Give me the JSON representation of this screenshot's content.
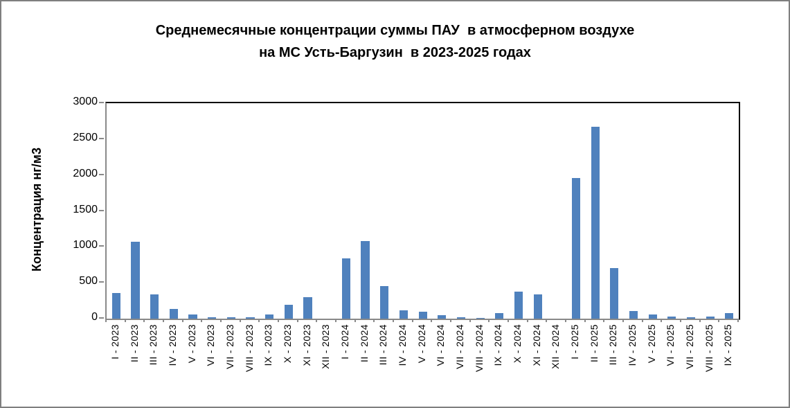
{
  "figure": {
    "title_line1": "Среднемесячные концентрации суммы ПАУ  в атмосферном воздухе",
    "title_line2": "на МС Усть-Баргузин  в 2023-2025 годах"
  },
  "chart_data": {
    "type": "bar",
    "title": "Среднемесячные концентрации суммы ПАУ в атмосферном воздухе на МС Усть-Баргузин в 2023-2025 годах",
    "ylabel": "Концентрация нг/м3",
    "xlabel": "",
    "ylim": [
      0,
      3000
    ],
    "yticks": [
      0,
      500,
      1000,
      1500,
      2000,
      2500,
      3000
    ],
    "grid": false,
    "legend": false,
    "categories": [
      "I - 2023",
      "II - 2023",
      "III - 2023",
      "IV - 2023",
      "V - 2023",
      "VI - 2023",
      "VII - 2023",
      "VIII - 2023",
      "IX - 2023",
      "X - 2023",
      "XI - 2023",
      "XII - 2023",
      "I - 2024",
      "II - 2024",
      "III - 2024",
      "IV - 2024",
      "V - 2024",
      "VI - 2024",
      "VII - 2024",
      "VIII - 2024",
      "IX - 2024",
      "X - 2024",
      "XI - 2024",
      "XII - 2024",
      "I - 2025",
      "II - 2025",
      "III - 2025",
      "IV - 2025",
      "V - 2025",
      "VI - 2025",
      "VII - 2025",
      "VIII - 2025",
      "IX - 2025"
    ],
    "values": [
      360,
      1075,
      340,
      140,
      55,
      20,
      18,
      15,
      60,
      195,
      295,
      0,
      835,
      1085,
      455,
      115,
      100,
      52,
      15,
      14,
      80,
      372,
      338,
      0,
      1960,
      2675,
      700,
      105,
      60,
      30,
      18,
      25,
      80
    ]
  },
  "colors": {
    "bar": "#4F81BD",
    "axis_line": "#898989",
    "plot_border": "#000000",
    "text": "#000000",
    "figure_border": "#7f7f7f"
  }
}
